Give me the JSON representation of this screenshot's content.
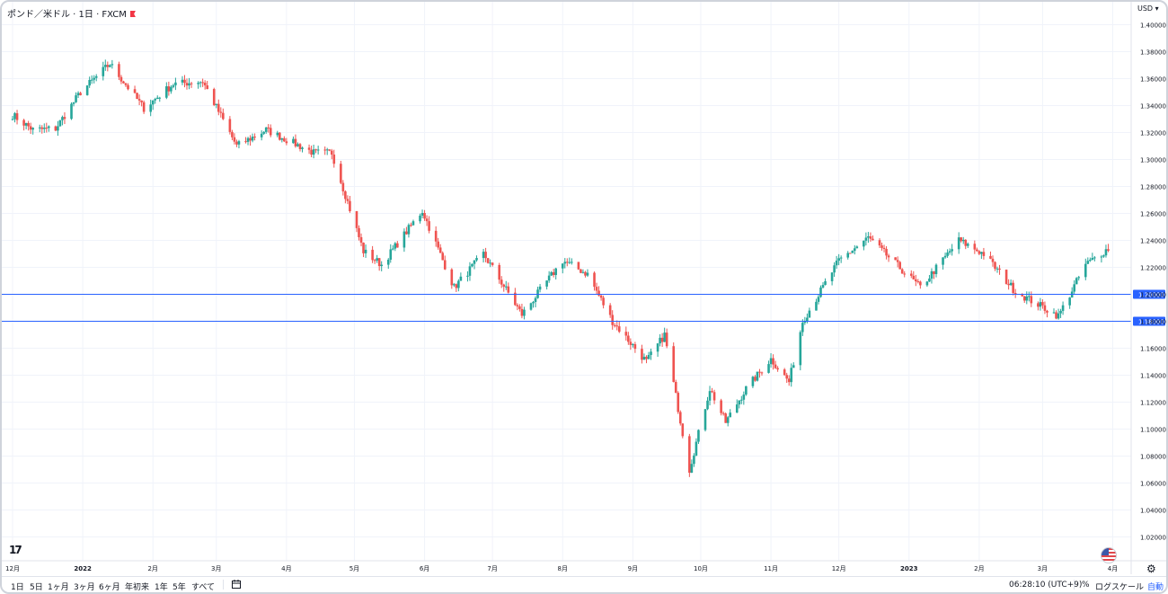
{
  "legend": {
    "title": "ポンド／米ドル · 1日 · FXCM"
  },
  "price_scale": {
    "currency": "USD"
  },
  "bottom_bar": {
    "ranges": [
      "1日",
      "5日",
      "1ヶ月",
      "3ヶ月",
      "6ヶ月",
      "年初来",
      "1年",
      "5年",
      "すべて"
    ],
    "time": "06:28:10 (UTC+9)",
    "percent": "%",
    "log_scale": "ログスケール",
    "auto": "自動"
  },
  "colors": {
    "up": "#26a69a",
    "down": "#ef5350",
    "hline": "#2962ff",
    "grid": "#f0f3fa"
  },
  "icons": {
    "logo": "tradingview-logo-icon",
    "flag": "us-flag-icon",
    "settings": "gear-icon",
    "goto": "calendar-range-icon"
  },
  "chart_data": {
    "type": "candlestick",
    "symbol": "GBP/USD",
    "timeframe": "1D",
    "x_ticks": [
      "12月",
      "2022",
      "2月",
      "3月",
      "4月",
      "5月",
      "6月",
      "7月",
      "8月",
      "9月",
      "10月",
      "11月",
      "12月",
      "2023",
      "2月",
      "3月",
      "4月"
    ],
    "y_ticks": [
      "1.40000",
      "1.38000",
      "1.36000",
      "1.34000",
      "1.32000",
      "1.30000",
      "1.28000",
      "1.26000",
      "1.24000",
      "1.22000",
      "1.20000",
      "1.18000",
      "1.16000",
      "1.14000",
      "1.12000",
      "1.10000",
      "1.08000",
      "1.06000",
      "1.04000",
      "1.02000"
    ],
    "ylim": [
      1.01,
      1.4
    ],
    "horizontal_lines": [
      {
        "value": 1.2,
        "label": "1.20000"
      },
      {
        "value": 1.18,
        "label": "1.18000"
      }
    ],
    "close_path": [
      [
        "2021-12-01",
        1.333
      ],
      [
        "2021-12-10",
        1.322
      ],
      [
        "2021-12-20",
        1.323
      ],
      [
        "2021-12-31",
        1.35
      ],
      [
        "2022-01-13",
        1.371
      ],
      [
        "2022-01-28",
        1.338
      ],
      [
        "2022-02-10",
        1.356
      ],
      [
        "2022-02-23",
        1.358
      ],
      [
        "2022-03-10",
        1.31
      ],
      [
        "2022-03-23",
        1.322
      ],
      [
        "2022-04-13",
        1.305
      ],
      [
        "2022-04-21",
        1.305
      ],
      [
        "2022-05-05",
        1.232
      ],
      [
        "2022-05-13",
        1.222
      ],
      [
        "2022-05-31",
        1.262
      ],
      [
        "2022-06-14",
        1.205
      ],
      [
        "2022-06-27",
        1.23
      ],
      [
        "2022-07-14",
        1.185
      ],
      [
        "2022-08-01",
        1.225
      ],
      [
        "2022-08-12",
        1.215
      ],
      [
        "2022-08-23",
        1.18
      ],
      [
        "2022-09-07",
        1.15
      ],
      [
        "2022-09-15",
        1.17
      ],
      [
        "2022-09-26",
        1.07
      ],
      [
        "2022-10-05",
        1.13
      ],
      [
        "2022-10-12",
        1.105
      ],
      [
        "2022-10-21",
        1.13
      ],
      [
        "2022-11-01",
        1.152
      ],
      [
        "2022-11-09",
        1.135
      ],
      [
        "2022-11-15",
        1.18
      ],
      [
        "2022-12-01",
        1.225
      ],
      [
        "2022-12-14",
        1.242
      ],
      [
        "2023-01-06",
        1.205
      ],
      [
        "2023-01-23",
        1.24
      ],
      [
        "2023-02-03",
        1.23
      ],
      [
        "2023-02-17",
        1.202
      ],
      [
        "2023-03-08",
        1.184
      ],
      [
        "2023-03-20",
        1.222
      ],
      [
        "2023-03-30",
        1.234
      ]
    ]
  }
}
